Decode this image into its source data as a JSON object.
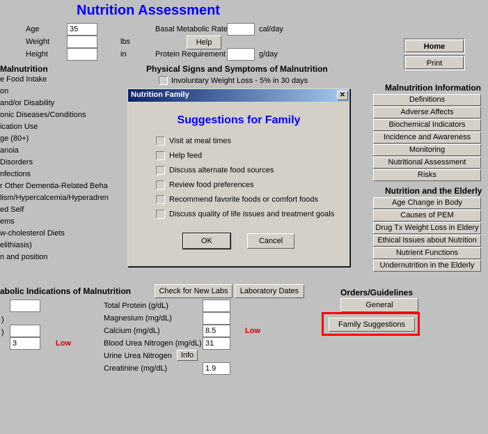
{
  "title": "Nutrition Assessment",
  "demographics": {
    "age_label": "Age",
    "age_value": "35",
    "weight_label": "Weight",
    "weight_value": "",
    "weight_unit": "lbs",
    "height_label": "Height",
    "height_value": "",
    "height_unit": "in"
  },
  "metabolic_top": {
    "bmr_label": "Basal Metabolic Rate",
    "bmr_value": "",
    "bmr_unit": "cal/day",
    "help_label": "Help",
    "protein_label": "Protein Requirement",
    "protein_value": "",
    "protein_unit": "g/day"
  },
  "nav": {
    "home": "Home",
    "print": "Print"
  },
  "malnutrition_header": "Malnutrition",
  "malnutrition_items": [
    "e Food Intake",
    "on",
    " and/or Disability",
    "onic Diseases/Conditions",
    "ication Use",
    "ge (80+)",
    "anoia",
    "Disorders",
    "nfections",
    "r Other Dementia-Related Beha",
    "lism/Hypercalcemia/Hyperadren",
    "ed Self",
    "ems",
    "w-cholesterol Diets",
    "elithiasis)",
    "n and position"
  ],
  "phys_header": "Physical Signs and Symptoms of Malnutrition",
  "phys_item": "Involuntary Weight Loss - 5% in 30 days",
  "mi_section": {
    "header_right": "Malnutrition Information",
    "items_right": [
      "Definitions",
      "Adverse Affects",
      "Biochemical Indicators",
      "Incidence and Awareness",
      "Monitoring",
      "Nutritional Assessment",
      "Risks"
    ],
    "header2": "Nutrition and the Elderly",
    "items2": [
      "Age Change in Body Composition",
      "Causes of PEM",
      "Drug Tx Weight Loss in Eldery",
      "Ethical Issues about Nutrition",
      "Nutrient Functions",
      "Undernutrition in the Elderly"
    ]
  },
  "labs": {
    "header": "abolic Indications of Malnutrition",
    "check_btn": "Check for New Labs",
    "dates_btn": "Laboratory Dates",
    "left_vals": [
      "",
      "",
      "3"
    ],
    "left_low": "Low",
    "rows": [
      {
        "label": "Total Protein (g/dL)",
        "value": ""
      },
      {
        "label": "Magnesium (mg/dL)",
        "value": ""
      },
      {
        "label": "Calcium (mg/dL)",
        "value": "8.5",
        "flag": "Low"
      },
      {
        "label": "Blood Urea Nitrogen (mg/dL)",
        "value": "31"
      },
      {
        "label": "Urine Urea Nitrogen",
        "value": "",
        "info": "Info"
      },
      {
        "label": "Creatinine (mg/dL)",
        "value": "1.9"
      }
    ]
  },
  "orders": {
    "header": "Orders/Guidelines",
    "general": "General",
    "family": "Family Suggestions"
  },
  "dialog": {
    "title": "Nutrition Family",
    "heading": "Suggestions for Family",
    "items": [
      "Visit at meal times",
      "Help feed",
      "Discuss alternate food sources",
      "Review food preferences",
      "Recommend favorite foods or comfort foods",
      "Discuss quality of life issues and treatment goals"
    ],
    "ok": "OK",
    "cancel": "Cancel"
  }
}
